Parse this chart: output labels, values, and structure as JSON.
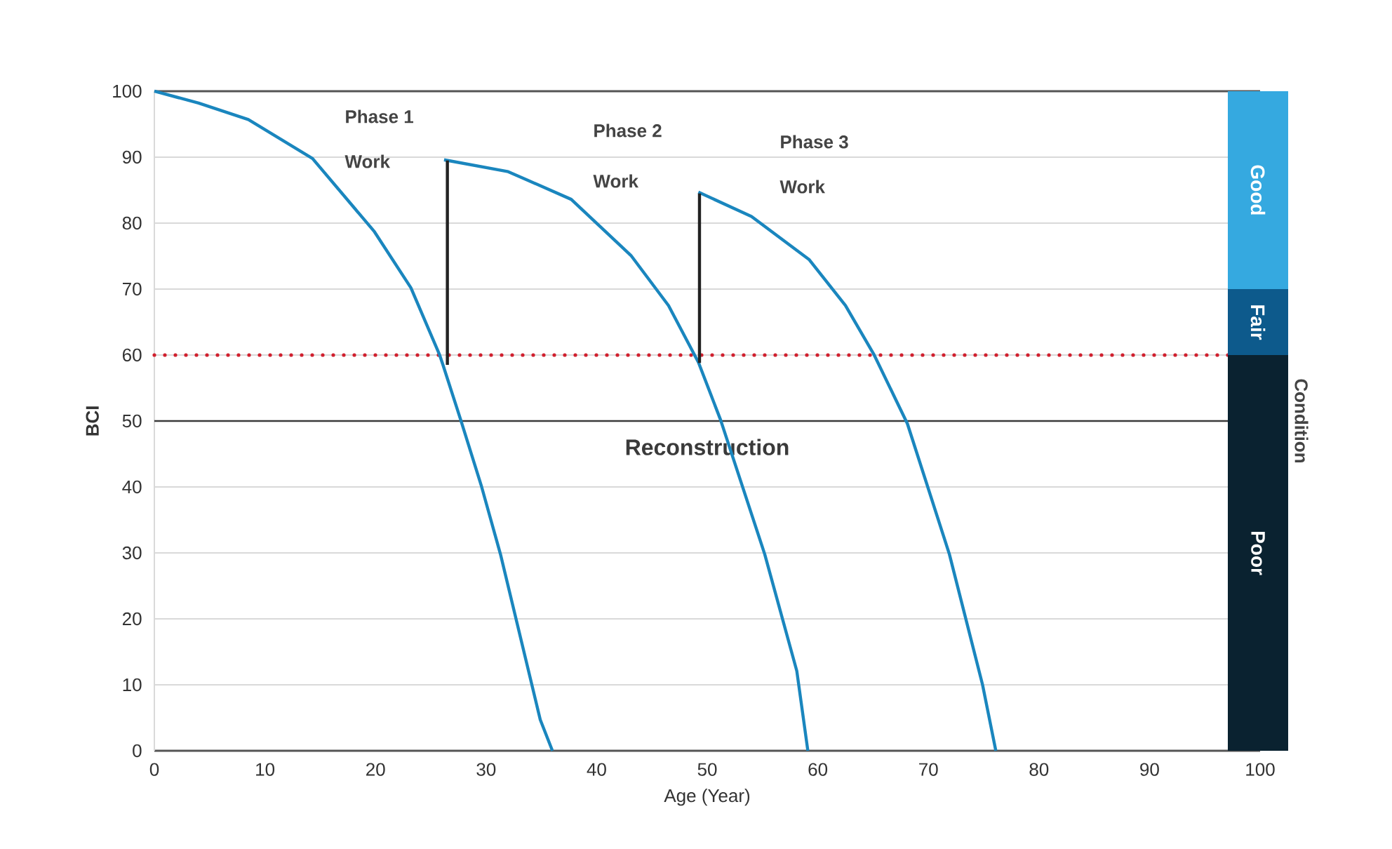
{
  "chart_data": [
    {
      "type": "line",
      "xlabel": "Age (Year)",
      "ylabel": "BCI",
      "xlim": [
        0,
        100
      ],
      "ylim": [
        0,
        100
      ],
      "xticks": [
        0,
        10,
        20,
        30,
        40,
        50,
        60,
        70,
        80,
        90,
        100
      ],
      "yticks": [
        0,
        10,
        20,
        30,
        40,
        50,
        60,
        70,
        80,
        90,
        100
      ],
      "grid": "y",
      "marker": "none",
      "series": [
        {
          "color": "#1a86be",
          "x": [
            0,
            4,
            8.5,
            14.3,
            19.9,
            23.2,
            25.8,
            26.1,
            27.7,
            29.6,
            31.3,
            34.9,
            36
          ],
          "values": [
            100,
            98.2,
            95.7,
            89.8,
            78.7,
            70.2,
            60,
            58.5,
            50.2,
            40,
            29.8,
            4.7,
            0
          ]
        },
        {
          "color": "#1a86be",
          "x": [
            26.2,
            32,
            37.7,
            43.1,
            46.5,
            49.2,
            51.2,
            55.2,
            58.1,
            59.1
          ],
          "values": [
            89.6,
            87.8,
            83.6,
            75.1,
            67.5,
            58.9,
            50.2,
            29.8,
            12.1,
            0
          ]
        },
        {
          "color": "#1a86be",
          "x": [
            49.2,
            54,
            59.2,
            62.5,
            65.1,
            68.1,
            71.9,
            74.9,
            76.1
          ],
          "values": [
            84.7,
            81,
            74.5,
            67.5,
            60,
            49.6,
            29.8,
            10,
            0
          ]
        },
        {
          "color": "#222222",
          "x": [
            26.5,
            26.5
          ],
          "values": [
            58.5,
            89.5
          ]
        },
        {
          "color": "#222222",
          "x": [
            49.3,
            49.3
          ],
          "values": [
            58.8,
            84.5
          ]
        }
      ],
      "ref_lines": [
        {
          "axis": "y",
          "value": 60,
          "color": "#d0202e",
          "line_style": "dotted"
        },
        {
          "axis": "y",
          "value": 50,
          "label": "Reconstruction",
          "color": "#3a3a3a"
        }
      ],
      "annotations": [
        "Phase 1",
        "Work",
        "Phase 2",
        "Work",
        "Phase 3",
        "Work"
      ]
    },
    {
      "type": "bar",
      "stacked": true,
      "categories": [
        null
      ],
      "ylim": [
        0,
        100
      ],
      "tick_labels": false,
      "y2label": "Condition",
      "series": [
        {
          "name": "Poor",
          "color": "#0a2230",
          "values": [
            60
          ]
        },
        {
          "name": "Fair",
          "color": "#0d5a8c",
          "values": [
            10
          ]
        },
        {
          "name": "Good",
          "color": "#35a9e0",
          "values": [
            30
          ]
        }
      ]
    }
  ]
}
